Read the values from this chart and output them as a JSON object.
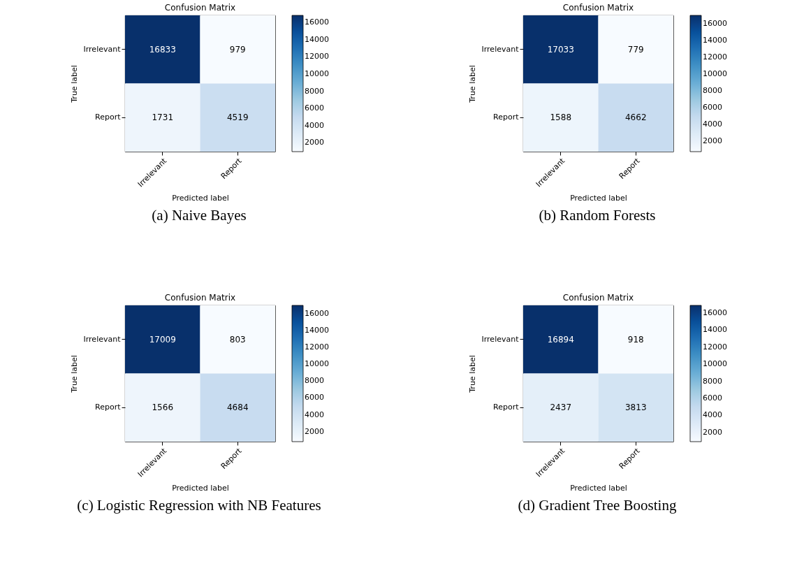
{
  "chart_data": [
    {
      "type": "heatmap",
      "title": "Confusion Matrix",
      "subtitle": "(a) Naive Bayes",
      "xlabel": "Predicted label",
      "ylabel": "True label",
      "categories": [
        "Irrelevant",
        "Report"
      ],
      "y_categories": [
        "Irrelevant",
        "Report"
      ],
      "cells": [
        [
          16833,
          979
        ],
        [
          1731,
          4519
        ]
      ],
      "clim": [
        979,
        16833
      ],
      "cticks": [
        2000,
        4000,
        6000,
        8000,
        10000,
        12000,
        14000,
        16000
      ],
      "data_labels": true
    },
    {
      "type": "heatmap",
      "title": "Confusion Matrix",
      "subtitle": "(b) Random Forests",
      "xlabel": "Predicted label",
      "ylabel": "True label",
      "categories": [
        "Irrelevant",
        "Report"
      ],
      "y_categories": [
        "Irrelevant",
        "Report"
      ],
      "cells": [
        [
          17033,
          779
        ],
        [
          1588,
          4662
        ]
      ],
      "clim": [
        779,
        17033
      ],
      "cticks": [
        2000,
        4000,
        6000,
        8000,
        10000,
        12000,
        14000,
        16000
      ],
      "data_labels": true
    },
    {
      "type": "heatmap",
      "title": "Confusion Matrix",
      "subtitle": "(c) Logistic Regression with NB Features",
      "xlabel": "Predicted label",
      "ylabel": "True label",
      "categories": [
        "Irrelevant",
        "Report"
      ],
      "y_categories": [
        "Irrelevant",
        "Report"
      ],
      "cells": [
        [
          17009,
          803
        ],
        [
          1566,
          4684
        ]
      ],
      "clim": [
        803,
        17009
      ],
      "cticks": [
        2000,
        4000,
        6000,
        8000,
        10000,
        12000,
        14000,
        16000
      ],
      "data_labels": true
    },
    {
      "type": "heatmap",
      "title": "Confusion Matrix",
      "subtitle": "(d) Gradient Tree Boosting",
      "xlabel": "Predicted label",
      "ylabel": "True label",
      "categories": [
        "Irrelevant",
        "Report"
      ],
      "y_categories": [
        "Irrelevant",
        "Report"
      ],
      "cells": [
        [
          16894,
          918
        ],
        [
          2437,
          3813
        ]
      ],
      "clim": [
        918,
        16894
      ],
      "cticks": [
        2000,
        4000,
        6000,
        8000,
        10000,
        12000,
        14000,
        16000
      ],
      "data_labels": true
    }
  ]
}
